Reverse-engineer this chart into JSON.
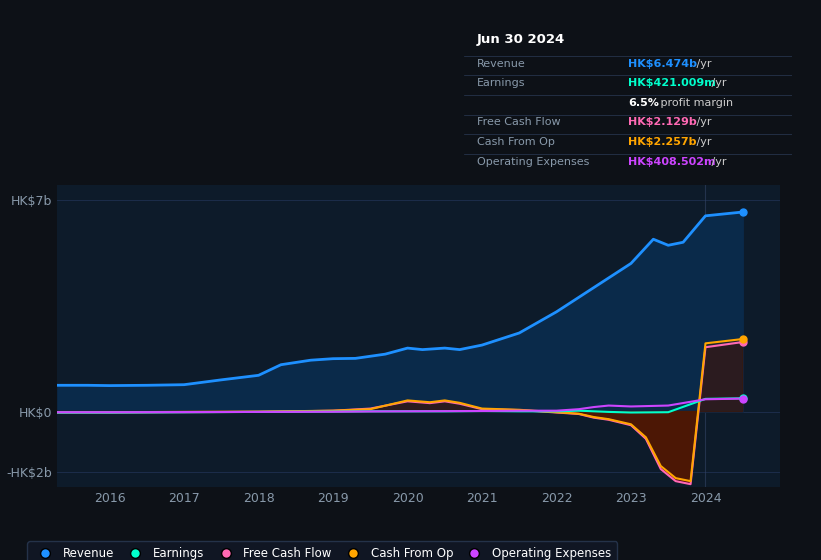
{
  "bg_color": "#0d1117",
  "plot_bg_color": "#0d1b2a",
  "grid_color": "#1e3050",
  "tooltip": {
    "date": "Jun 30 2024",
    "rows": [
      {
        "label": "Revenue",
        "value": "HK$6.474b",
        "unit": " /yr",
        "value_color": "#1e90ff",
        "label_color": "#8899aa"
      },
      {
        "label": "Earnings",
        "value": "HK$421.009m",
        "unit": " /yr",
        "value_color": "#00ffcc",
        "label_color": "#8899aa"
      },
      {
        "label": "",
        "value": "6.5%",
        "unit": " profit margin",
        "value_color": "#ffffff",
        "label_color": "#cccccc"
      },
      {
        "label": "Free Cash Flow",
        "value": "HK$2.129b",
        "unit": " /yr",
        "value_color": "#ff69b4",
        "label_color": "#8899aa"
      },
      {
        "label": "Cash From Op",
        "value": "HK$2.257b",
        "unit": " /yr",
        "value_color": "#ffa500",
        "label_color": "#8899aa"
      },
      {
        "label": "Operating Expenses",
        "value": "HK$408.502m",
        "unit": " /yr",
        "value_color": "#cc44ff",
        "label_color": "#8899aa"
      }
    ]
  },
  "ylim": [
    -2500000000,
    7500000000
  ],
  "ytick_vals": [
    -2000000000,
    0,
    7000000000
  ],
  "ytick_labels": [
    "-HK$2b",
    "HK$0",
    "HK$7b"
  ],
  "xlim_start": 2015.3,
  "xlim_end": 2025.0,
  "xticks": [
    2016,
    2017,
    2018,
    2019,
    2020,
    2021,
    2022,
    2023,
    2024
  ],
  "legend_entries": [
    {
      "label": "Revenue",
      "color": "#1e90ff"
    },
    {
      "label": "Earnings",
      "color": "#00ffcc"
    },
    {
      "label": "Free Cash Flow",
      "color": "#ff69b4"
    },
    {
      "label": "Cash From Op",
      "color": "#ffa500"
    },
    {
      "label": "Operating Expenses",
      "color": "#cc44ff"
    }
  ],
  "series": {
    "revenue": {
      "color": "#1e90ff",
      "fill_color": "#0a2a4a",
      "x": [
        2015.3,
        2015.7,
        2016.0,
        2016.5,
        2017.0,
        2017.5,
        2018.0,
        2018.3,
        2018.7,
        2019.0,
        2019.3,
        2019.7,
        2020.0,
        2020.2,
        2020.5,
        2020.7,
        2021.0,
        2021.5,
        2022.0,
        2022.5,
        2023.0,
        2023.3,
        2023.5,
        2023.7,
        2024.0,
        2024.5
      ],
      "y": [
        870000000,
        870000000,
        860000000,
        870000000,
        890000000,
        1050000000,
        1200000000,
        1550000000,
        1700000000,
        1750000000,
        1760000000,
        1900000000,
        2100000000,
        2050000000,
        2100000000,
        2050000000,
        2200000000,
        2600000000,
        3300000000,
        4100000000,
        4900000000,
        5700000000,
        5500000000,
        5600000000,
        6474000000,
        6600000000
      ]
    },
    "earnings": {
      "color": "#00ffcc",
      "x": [
        2015.3,
        2016.0,
        2017.0,
        2018.0,
        2019.0,
        2019.5,
        2020.0,
        2020.5,
        2021.0,
        2021.5,
        2022.0,
        2022.3,
        2022.5,
        2022.7,
        2023.0,
        2023.5,
        2024.0,
        2024.5
      ],
      "y": [
        -30000000,
        -30000000,
        -20000000,
        -10000000,
        0,
        10000000,
        10000000,
        10000000,
        20000000,
        10000000,
        10000000,
        30000000,
        10000000,
        -10000000,
        -30000000,
        -20000000,
        421000000,
        440000000
      ]
    },
    "free_cash_flow": {
      "color": "#ff69b4",
      "fill_color": "#5a0a2a",
      "x": [
        2015.3,
        2016.0,
        2017.0,
        2018.0,
        2019.0,
        2019.5,
        2020.0,
        2020.3,
        2020.5,
        2020.7,
        2021.0,
        2021.5,
        2022.0,
        2022.3,
        2022.5,
        2022.7,
        2023.0,
        2023.2,
        2023.4,
        2023.6,
        2023.8,
        2024.0,
        2024.5
      ],
      "y": [
        -30000000,
        -30000000,
        -20000000,
        -10000000,
        30000000,
        100000000,
        340000000,
        280000000,
        340000000,
        260000000,
        80000000,
        50000000,
        -30000000,
        -80000000,
        -200000000,
        -270000000,
        -450000000,
        -900000000,
        -1900000000,
        -2300000000,
        -2400000000,
        2129000000,
        2300000000
      ]
    },
    "cash_from_op": {
      "color": "#ffa500",
      "fill_color": "#4a2800",
      "x": [
        2015.3,
        2016.0,
        2017.0,
        2018.0,
        2019.0,
        2019.5,
        2020.0,
        2020.3,
        2020.5,
        2020.7,
        2021.0,
        2021.5,
        2022.0,
        2022.3,
        2022.5,
        2022.7,
        2023.0,
        2023.2,
        2023.4,
        2023.6,
        2023.8,
        2024.0,
        2024.5
      ],
      "y": [
        -20000000,
        -20000000,
        -10000000,
        0,
        30000000,
        80000000,
        370000000,
        310000000,
        370000000,
        290000000,
        100000000,
        60000000,
        -20000000,
        -70000000,
        -180000000,
        -250000000,
        -420000000,
        -850000000,
        -1800000000,
        -2200000000,
        -2300000000,
        2257000000,
        2400000000
      ]
    },
    "operating_expenses": {
      "color": "#cc44ff",
      "x": [
        2015.3,
        2016.0,
        2017.0,
        2018.0,
        2019.0,
        2019.5,
        2020.0,
        2020.5,
        2021.0,
        2021.5,
        2022.0,
        2022.3,
        2022.5,
        2022.7,
        2023.0,
        2023.5,
        2024.0,
        2024.5
      ],
      "y": [
        -20000000,
        -20000000,
        -15000000,
        -10000000,
        -5000000,
        5000000,
        10000000,
        15000000,
        20000000,
        30000000,
        30000000,
        80000000,
        150000000,
        200000000,
        170000000,
        200000000,
        408000000,
        430000000
      ]
    }
  }
}
